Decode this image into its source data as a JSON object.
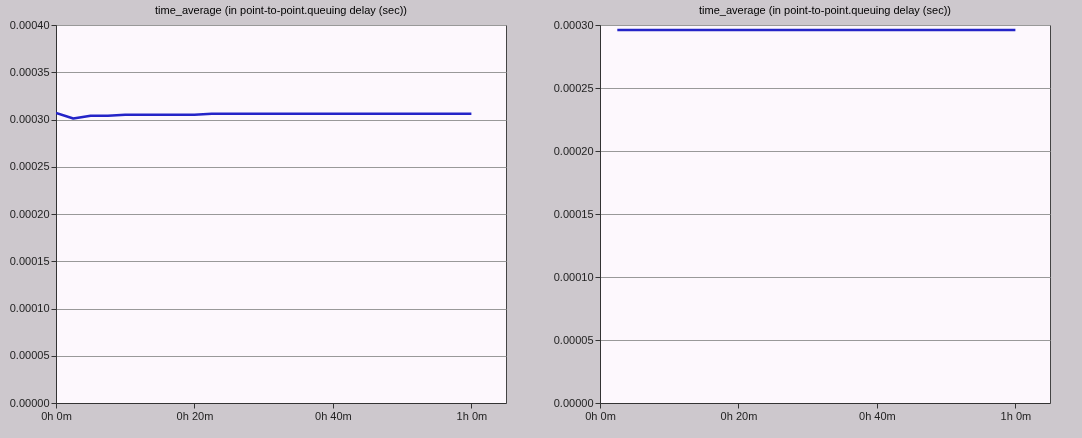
{
  "chart_data": [
    {
      "type": "line",
      "title": "time_average (in point-to-point.queuing delay (sec))",
      "categories": [
        "0h 0m",
        null,
        null,
        null,
        null,
        null,
        null,
        null,
        "0h 20m",
        null,
        null,
        null,
        null,
        null,
        null,
        null,
        "0h 40m",
        null,
        null,
        null,
        null,
        null,
        null,
        null,
        "1h 0m",
        null,
        null
      ],
      "series": [
        {
          "color": "#2424c8",
          "values": [
            0.000307,
            0.000301,
            0.000304,
            0.000304,
            0.000305,
            0.000305,
            0.000305,
            0.000305,
            0.000305,
            0.000306,
            0.000306,
            0.000306,
            0.000306,
            0.000306,
            0.000306,
            0.000306,
            0.000306,
            0.000306,
            0.000306,
            0.000306,
            0.000306,
            0.000306,
            0.000306,
            0.000306,
            0.000306,
            null,
            null
          ]
        }
      ],
      "ylim": [
        0,
        0.0004
      ],
      "yticks": [
        {
          "value": 0,
          "label": "0.00000"
        },
        {
          "value": 5e-05,
          "label": "0.00005"
        },
        {
          "value": 0.0001,
          "label": "0.00010"
        },
        {
          "value": 0.00015,
          "label": "0.00015"
        },
        {
          "value": 0.0002,
          "label": "0.00020"
        },
        {
          "value": 0.00025,
          "label": "0.00025"
        },
        {
          "value": 0.0003,
          "label": "0.00030"
        },
        {
          "value": 0.00035,
          "label": "0.00035"
        },
        {
          "value": 0.0004,
          "label": "0.00040"
        }
      ],
      "grid": "y"
    },
    {
      "type": "line",
      "title": "time_average (in point-to-point.queuing delay (sec))",
      "categories": [
        "0h 0m",
        null,
        null,
        null,
        null,
        null,
        null,
        null,
        "0h 20m",
        null,
        null,
        null,
        null,
        null,
        null,
        null,
        "0h 40m",
        null,
        null,
        null,
        null,
        null,
        null,
        null,
        "1h 0m",
        null,
        null
      ],
      "series": [
        {
          "color": "#2424c8",
          "values": [
            null,
            0.000296,
            0.000296,
            0.000296,
            0.000296,
            0.000296,
            0.000296,
            0.000296,
            0.000296,
            0.000296,
            0.000296,
            0.000296,
            0.000296,
            0.000296,
            0.000296,
            0.000296,
            0.000296,
            0.000296,
            0.000296,
            0.000296,
            0.000296,
            0.000296,
            0.000296,
            0.000296,
            0.000296,
            null,
            null
          ]
        }
      ],
      "ylim": [
        0,
        0.0003
      ],
      "yticks": [
        {
          "value": 0,
          "label": "0.00000"
        },
        {
          "value": 5e-05,
          "label": "0.00005"
        },
        {
          "value": 0.0001,
          "label": "0.00010"
        },
        {
          "value": 0.00015,
          "label": "0.00015"
        },
        {
          "value": 0.0002,
          "label": "0.00020"
        },
        {
          "value": 0.00025,
          "label": "0.00025"
        },
        {
          "value": 0.0003,
          "label": "0.00030"
        }
      ],
      "grid": "y"
    }
  ]
}
